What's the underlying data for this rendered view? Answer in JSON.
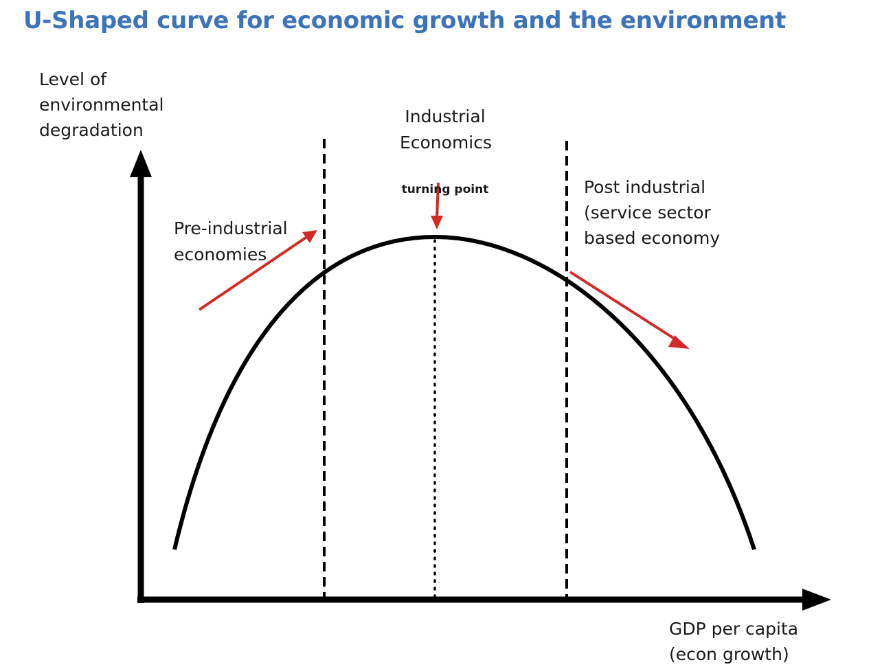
{
  "title": "U-Shaped curve for economic growth and the environment",
  "y_axis": {
    "label_lines": [
      "Level of",
      "environmental",
      "degradation"
    ]
  },
  "x_axis": {
    "label_lines": [
      "GDP per capita",
      "(econ growth)"
    ]
  },
  "stages": {
    "pre_industrial": {
      "label_lines": [
        "Pre-industrial",
        "economies"
      ]
    },
    "industrial": {
      "label_lines": [
        "Industrial",
        "Economics"
      ]
    },
    "post_industrial": {
      "label_lines": [
        "Post industrial",
        "(service sector",
        "based economy"
      ]
    }
  },
  "turning_point": {
    "label": "turning point"
  },
  "colors": {
    "title": "#3c73b9",
    "curve": "#000000",
    "arrows": "#d22b27"
  }
}
